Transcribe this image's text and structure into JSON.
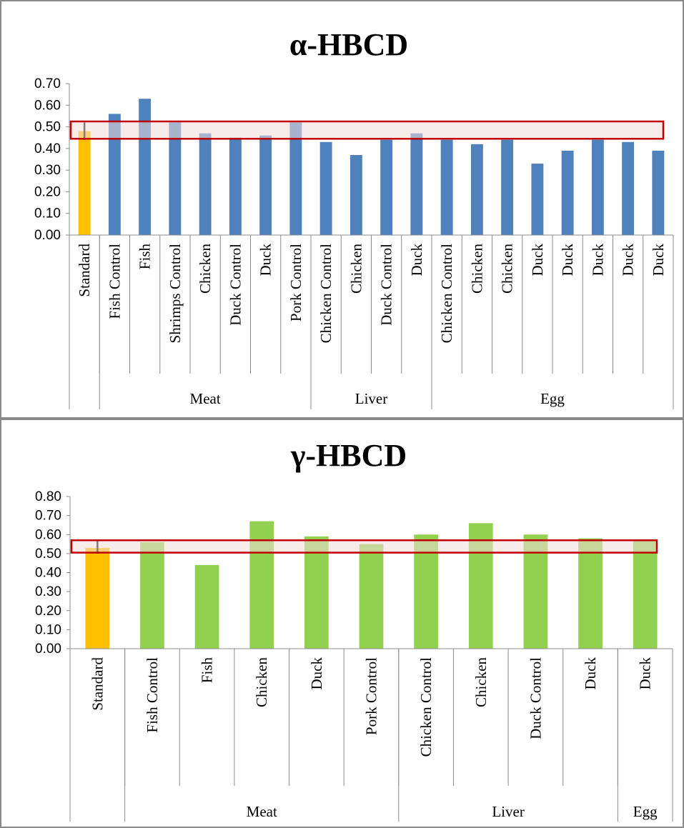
{
  "chart_data": [
    {
      "type": "bar",
      "title": "α-HBCD",
      "xlabel": "",
      "ylabel": "",
      "ylim": [
        0,
        0.7
      ],
      "yticks": [
        "0.00",
        "0.10",
        "0.20",
        "0.30",
        "0.40",
        "0.50",
        "0.60",
        "0.70"
      ],
      "categories": [
        "Standard",
        "Fish Control",
        "Fish",
        "Shrimps Control",
        "Chicken",
        "Duck Control",
        "Duck",
        "Pork Control",
        "Chicken Control",
        "Chicken",
        "Duck Control",
        "Duck",
        "Chicken Control",
        "Chicken",
        "Chicken",
        "Duck",
        "Duck",
        "Duck",
        "Duck",
        "Duck"
      ],
      "values": [
        0.48,
        0.56,
        0.63,
        0.52,
        0.47,
        0.45,
        0.46,
        0.52,
        0.43,
        0.37,
        0.44,
        0.47,
        0.44,
        0.42,
        0.44,
        0.33,
        0.39,
        0.44,
        0.43,
        0.39
      ],
      "groups": [
        {
          "label": "",
          "categories": 1
        },
        {
          "label": "Meat",
          "categories": 7
        },
        {
          "label": "Liver",
          "categories": 4
        },
        {
          "label": "Egg",
          "categories": 8
        }
      ],
      "standard_error": [
        0.44,
        0.52
      ],
      "reference_band": [
        0.445,
        0.525
      ],
      "grid": false,
      "legend": "none",
      "colors": {
        "standard": "#FFC000",
        "samples": "#4F81BD",
        "band_fill": "#F2DCDB",
        "band_stroke": "#C00000",
        "error_bar": "#000000"
      }
    },
    {
      "type": "bar",
      "title": "γ-HBCD",
      "xlabel": "",
      "ylabel": "",
      "ylim": [
        0,
        0.8
      ],
      "yticks": [
        "0.00",
        "0.10",
        "0.20",
        "0.30",
        "0.40",
        "0.50",
        "0.60",
        "0.70",
        "0.80"
      ],
      "categories": [
        "Standard",
        "Fish Control",
        "Fish",
        "Chicken",
        "Duck",
        "Pork Control",
        "Chicken Control",
        "Chicken",
        "Duck Control",
        "Duck",
        "Duck"
      ],
      "values": [
        0.53,
        0.56,
        0.44,
        0.67,
        0.59,
        0.55,
        0.6,
        0.66,
        0.6,
        0.58,
        0.57
      ],
      "groups": [
        {
          "label": "",
          "categories": 1
        },
        {
          "label": "Meat",
          "categories": 5
        },
        {
          "label": "Liver",
          "categories": 4
        },
        {
          "label": "Egg",
          "categories": 1
        }
      ],
      "standard_error": [
        0.5,
        0.57
      ],
      "reference_band": [
        0.505,
        0.57
      ],
      "grid": false,
      "legend": "none",
      "colors": {
        "standard": "#FFC000",
        "samples": "#92D050",
        "band_fill": "#F2DCDB",
        "band_stroke": "#C00000",
        "error_bar": "#000000"
      }
    }
  ]
}
